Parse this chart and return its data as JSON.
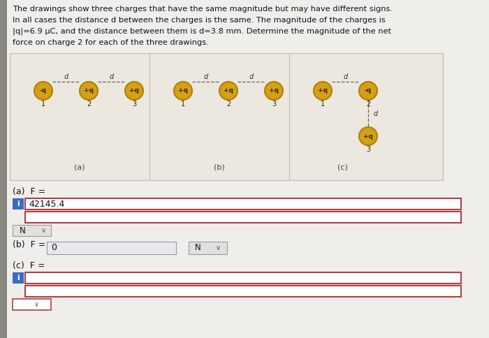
{
  "page_bg": "#f0eeeb",
  "panel_bg": "#ede8df",
  "panel_border": "#c8c4bc",
  "charge_face": "#d4a017",
  "charge_edge": "#b08000",
  "charge_text": "#3a2800",
  "line_color": "#666666",
  "answer_border": "#b04040",
  "answer_bg": "#ffffff",
  "input_bg": "#e8e8ee",
  "info_bg": "#3a6ac8",
  "dropdown_bg": "#e0e0e0",
  "dropdown_border": "#999999",
  "text_color": "#111111",
  "title_line1": "The drawings show three charges that have the same magnitude but may have different signs.",
  "title_line2": "In all cases the distance d between the charges is the same. The magnitude of the charges is",
  "title_line3": "|q|=6.9 μC, and the distance between them is d=3.8 mm. Determine the magnitude of the net",
  "title_line4": "force on charge 2 for each of the three drawings.",
  "answer_a": "42145.4",
  "answer_b": "0",
  "unit_a": "N",
  "unit_b": "N",
  "sub_a": "(a)",
  "sub_b": "(b)",
  "sub_c": "(c)"
}
